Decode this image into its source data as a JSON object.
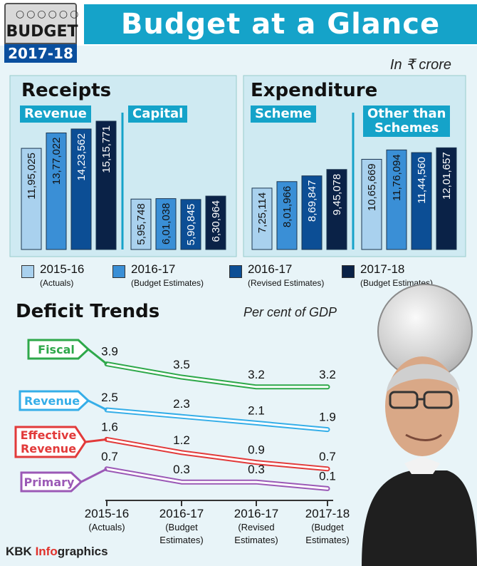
{
  "header": {
    "badge_word": "BUDGET",
    "badge_year": "2017-18",
    "title": "Budget at a Glance",
    "unit": "In ₹ crore"
  },
  "colors": {
    "series": [
      "#a9d1ee",
      "#3a8fd6",
      "#0c4e95",
      "#0a2247"
    ],
    "fiscal": "#2ea84a",
    "revenue": "#35aee8",
    "effective_revenue": "#e23a3a",
    "primary": "#9b59b6",
    "accent": "#15a3c9"
  },
  "receipts": {
    "title": "Receipts",
    "groups": [
      {
        "label": "Revenue",
        "value_labels": [
          "11,95,025",
          "13,77,022",
          "14,23,562",
          "15,15,771"
        ]
      },
      {
        "label": "Capital",
        "value_labels": [
          "5,95,748",
          "6,01,038",
          "5,90,845",
          "6,30,964"
        ]
      }
    ]
  },
  "expenditure": {
    "title": "Expenditure",
    "groups": [
      {
        "label": "Scheme",
        "value_labels": [
          "7,25,114",
          "8,01,966",
          "8,69,847",
          "9,45,078"
        ]
      },
      {
        "label_lines": [
          "Other than",
          "Schemes"
        ],
        "value_labels": [
          "10,65,669",
          "11,76,094",
          "11,44,560",
          "12,01,657"
        ]
      }
    ]
  },
  "legend": [
    {
      "year": "2015-16",
      "note": "(Actuals)"
    },
    {
      "year": "2016-17",
      "note": "(Budget Estimates)"
    },
    {
      "year": "2016-17",
      "note": "(Revised Estimates)"
    },
    {
      "year": "2017-18",
      "note": "(Budget Estimates)"
    }
  ],
  "deficit": {
    "title": "Deficit Trends",
    "subtitle": "Per cent of GDP",
    "x_labels": [
      [
        "2015-16",
        "(Actuals)"
      ],
      [
        "2016-17",
        "(Budget",
        "Estimates)"
      ],
      [
        "2016-17",
        "(Revised",
        "Estimates)"
      ],
      [
        "2017-18",
        "(Budget",
        "Estimates)"
      ]
    ]
  },
  "footer": {
    "prefix": "KBK ",
    "highlight": "Info",
    "suffix": "graphics"
  },
  "chart_data": [
    {
      "type": "bar",
      "title": "Receipts",
      "categories": [
        "Revenue",
        "Capital"
      ],
      "series": [
        {
          "name": "2015-16 (Actuals)",
          "values": [
            1195025,
            595748
          ]
        },
        {
          "name": "2016-17 (Budget Estimates)",
          "values": [
            1377022,
            601038
          ]
        },
        {
          "name": "2016-17 (Revised Estimates)",
          "values": [
            1423562,
            590845
          ]
        },
        {
          "name": "2017-18 (Budget Estimates)",
          "values": [
            1515771,
            630964
          ]
        }
      ]
    },
    {
      "type": "bar",
      "title": "Expenditure",
      "categories": [
        "Scheme",
        "Other than Schemes"
      ],
      "series": [
        {
          "name": "2015-16 (Actuals)",
          "values": [
            725114,
            1065669
          ]
        },
        {
          "name": "2016-17 (Budget Estimates)",
          "values": [
            801966,
            1176094
          ]
        },
        {
          "name": "2016-17 (Revised Estimates)",
          "values": [
            869847,
            1144560
          ]
        },
        {
          "name": "2017-18 (Budget Estimates)",
          "values": [
            945078,
            1201657
          ]
        }
      ]
    },
    {
      "type": "line",
      "title": "Deficit Trends",
      "x": [
        "2015-16 (Actuals)",
        "2016-17 (Budget Estimates)",
        "2016-17 (Revised Estimates)",
        "2017-18 (Budget Estimates)"
      ],
      "series": [
        {
          "name": "Fiscal",
          "values": [
            3.9,
            3.5,
            3.2,
            3.2
          ],
          "value_labels": [
            "3.9",
            "3.5",
            "3.2",
            "3.2"
          ]
        },
        {
          "name": "Revenue",
          "values": [
            2.5,
            2.3,
            2.1,
            1.9
          ],
          "value_labels": [
            "2.5",
            "2.3",
            "2.1",
            "1.9"
          ]
        },
        {
          "name": "Effective Revenue",
          "values": [
            1.6,
            1.2,
            0.9,
            0.7
          ],
          "value_labels": [
            "1.6",
            "1.2",
            "0.9",
            "0.7"
          ]
        },
        {
          "name": "Primary",
          "values": [
            0.7,
            0.3,
            0.3,
            0.1
          ],
          "value_labels": [
            "0.7",
            "0.3",
            "0.3",
            "0.1"
          ]
        }
      ]
    }
  ]
}
